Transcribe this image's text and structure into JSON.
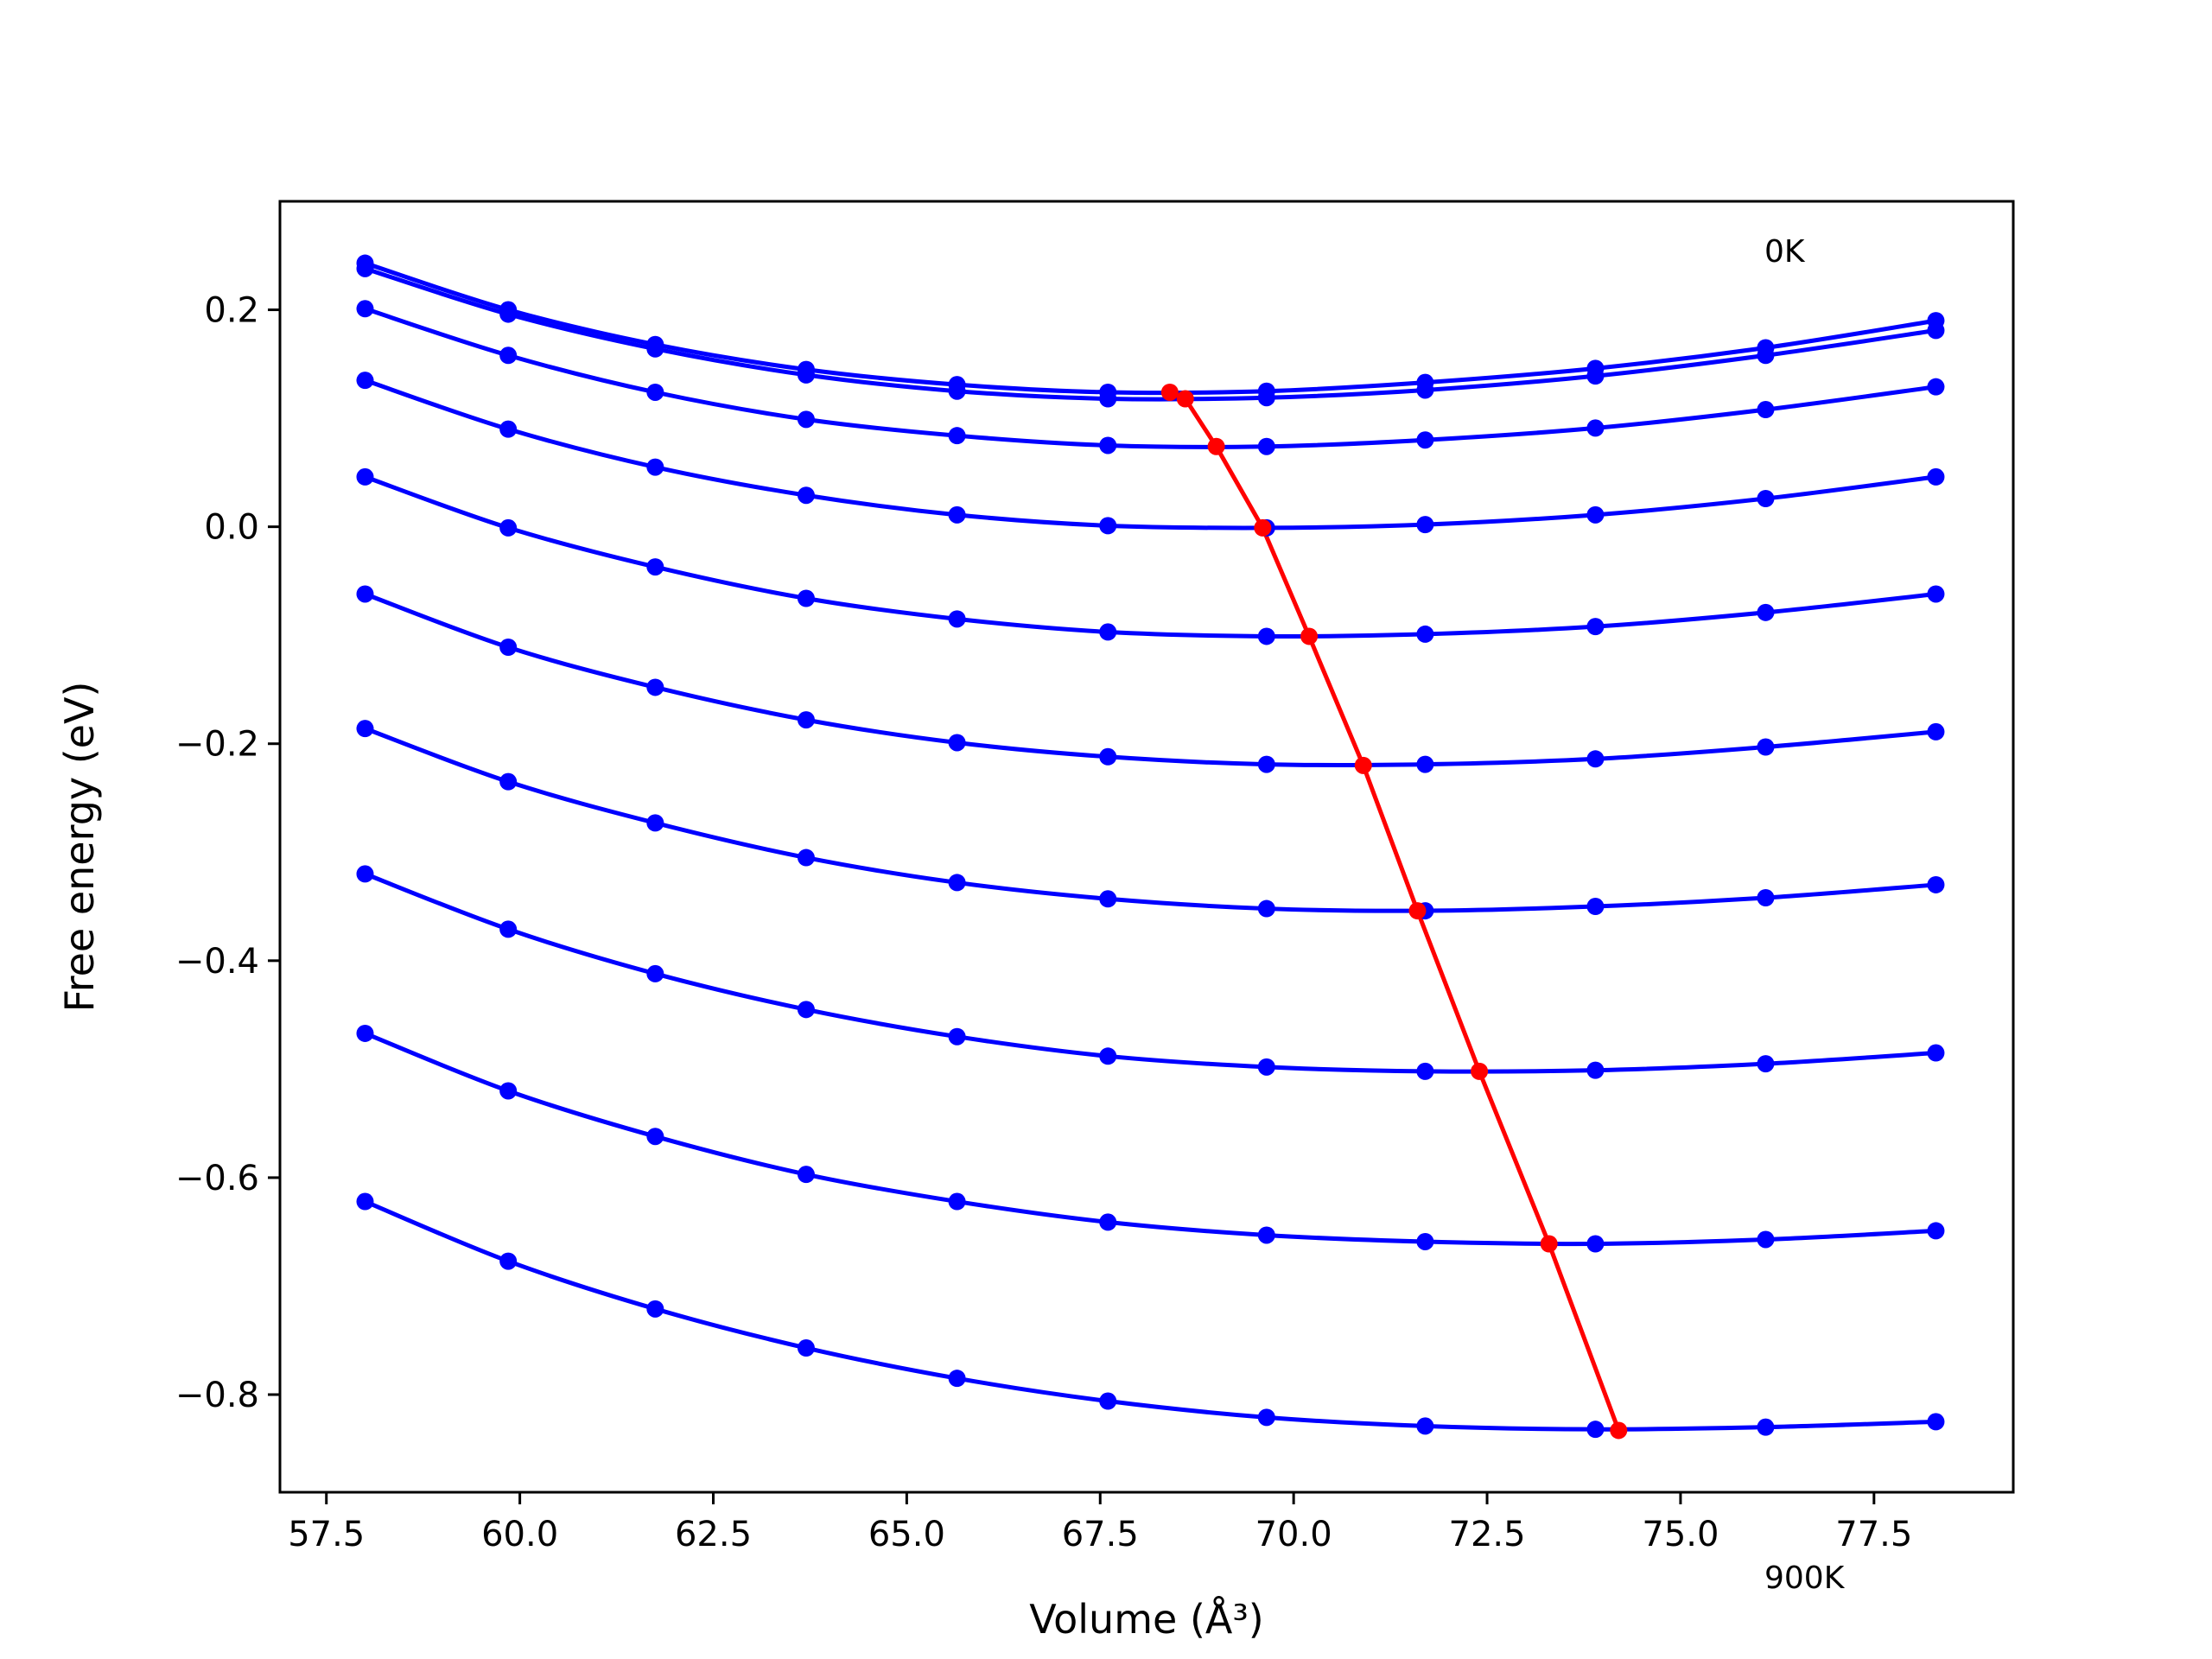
{
  "chart_data": {
    "type": "line",
    "xlabel": "Volume (Å³)",
    "ylabel": "Free energy (eV)",
    "xlim": [
      56.9,
      79.3
    ],
    "ylim": [
      -0.89,
      0.3
    ],
    "xticks": [
      "57.5",
      "60.0",
      "62.5",
      "65.0",
      "67.5",
      "70.0",
      "72.5",
      "75.0",
      "77.5"
    ],
    "yticks": [
      "−0.8",
      "−0.6",
      "−0.4",
      "−0.2",
      "0.0",
      "0.2"
    ],
    "annotations": [
      "0K",
      "900K"
    ],
    "colors": {
      "curves": "#0000ff",
      "minimum_line": "#ff0000"
    },
    "x": [
      58.0,
      59.85,
      61.75,
      63.7,
      65.65,
      67.6,
      69.65,
      71.7,
      73.9,
      76.1,
      78.3
    ],
    "series": [
      {
        "values": [
          0.243,
          0.2,
          0.168,
          0.145,
          0.131,
          0.124,
          0.125,
          0.133,
          0.146,
          0.165,
          0.19
        ]
      },
      {
        "values": [
          0.238,
          0.196,
          0.164,
          0.14,
          0.125,
          0.118,
          0.119,
          0.126,
          0.139,
          0.158,
          0.181
        ]
      },
      {
        "values": [
          0.201,
          0.158,
          0.124,
          0.099,
          0.084,
          0.075,
          0.074,
          0.08,
          0.091,
          0.108,
          0.129
        ]
      },
      {
        "values": [
          0.135,
          0.09,
          0.055,
          0.029,
          0.011,
          0.001,
          -0.001,
          0.002,
          0.011,
          0.026,
          0.046
        ]
      },
      {
        "values": [
          0.046,
          -0.001,
          -0.037,
          -0.066,
          -0.085,
          -0.097,
          -0.101,
          -0.099,
          -0.092,
          -0.079,
          -0.062
        ]
      },
      {
        "values": [
          -0.062,
          -0.111,
          -0.148,
          -0.178,
          -0.199,
          -0.212,
          -0.219,
          -0.219,
          -0.214,
          -0.203,
          -0.189
        ]
      },
      {
        "values": [
          -0.186,
          -0.235,
          -0.273,
          -0.305,
          -0.328,
          -0.343,
          -0.352,
          -0.354,
          -0.35,
          -0.342,
          -0.33
        ]
      },
      {
        "values": [
          -0.32,
          -0.371,
          -0.412,
          -0.445,
          -0.47,
          -0.488,
          -0.498,
          -0.502,
          -0.501,
          -0.495,
          -0.485
        ]
      },
      {
        "values": [
          -0.467,
          -0.52,
          -0.562,
          -0.597,
          -0.622,
          -0.641,
          -0.653,
          -0.659,
          -0.661,
          -0.657,
          -0.649
        ]
      },
      {
        "values": [
          -0.622,
          -0.677,
          -0.721,
          -0.757,
          -0.785,
          -0.806,
          -0.821,
          -0.829,
          -0.832,
          -0.83,
          -0.825
        ]
      }
    ],
    "minima": {
      "x": [
        68.4,
        68.6,
        69.0,
        69.6,
        70.2,
        70.9,
        71.6,
        72.4,
        73.3,
        74.2
      ],
      "y": [
        0.124,
        0.118,
        0.074,
        -0.001,
        -0.101,
        -0.22,
        -0.354,
        -0.502,
        -0.661,
        -0.833
      ]
    }
  }
}
